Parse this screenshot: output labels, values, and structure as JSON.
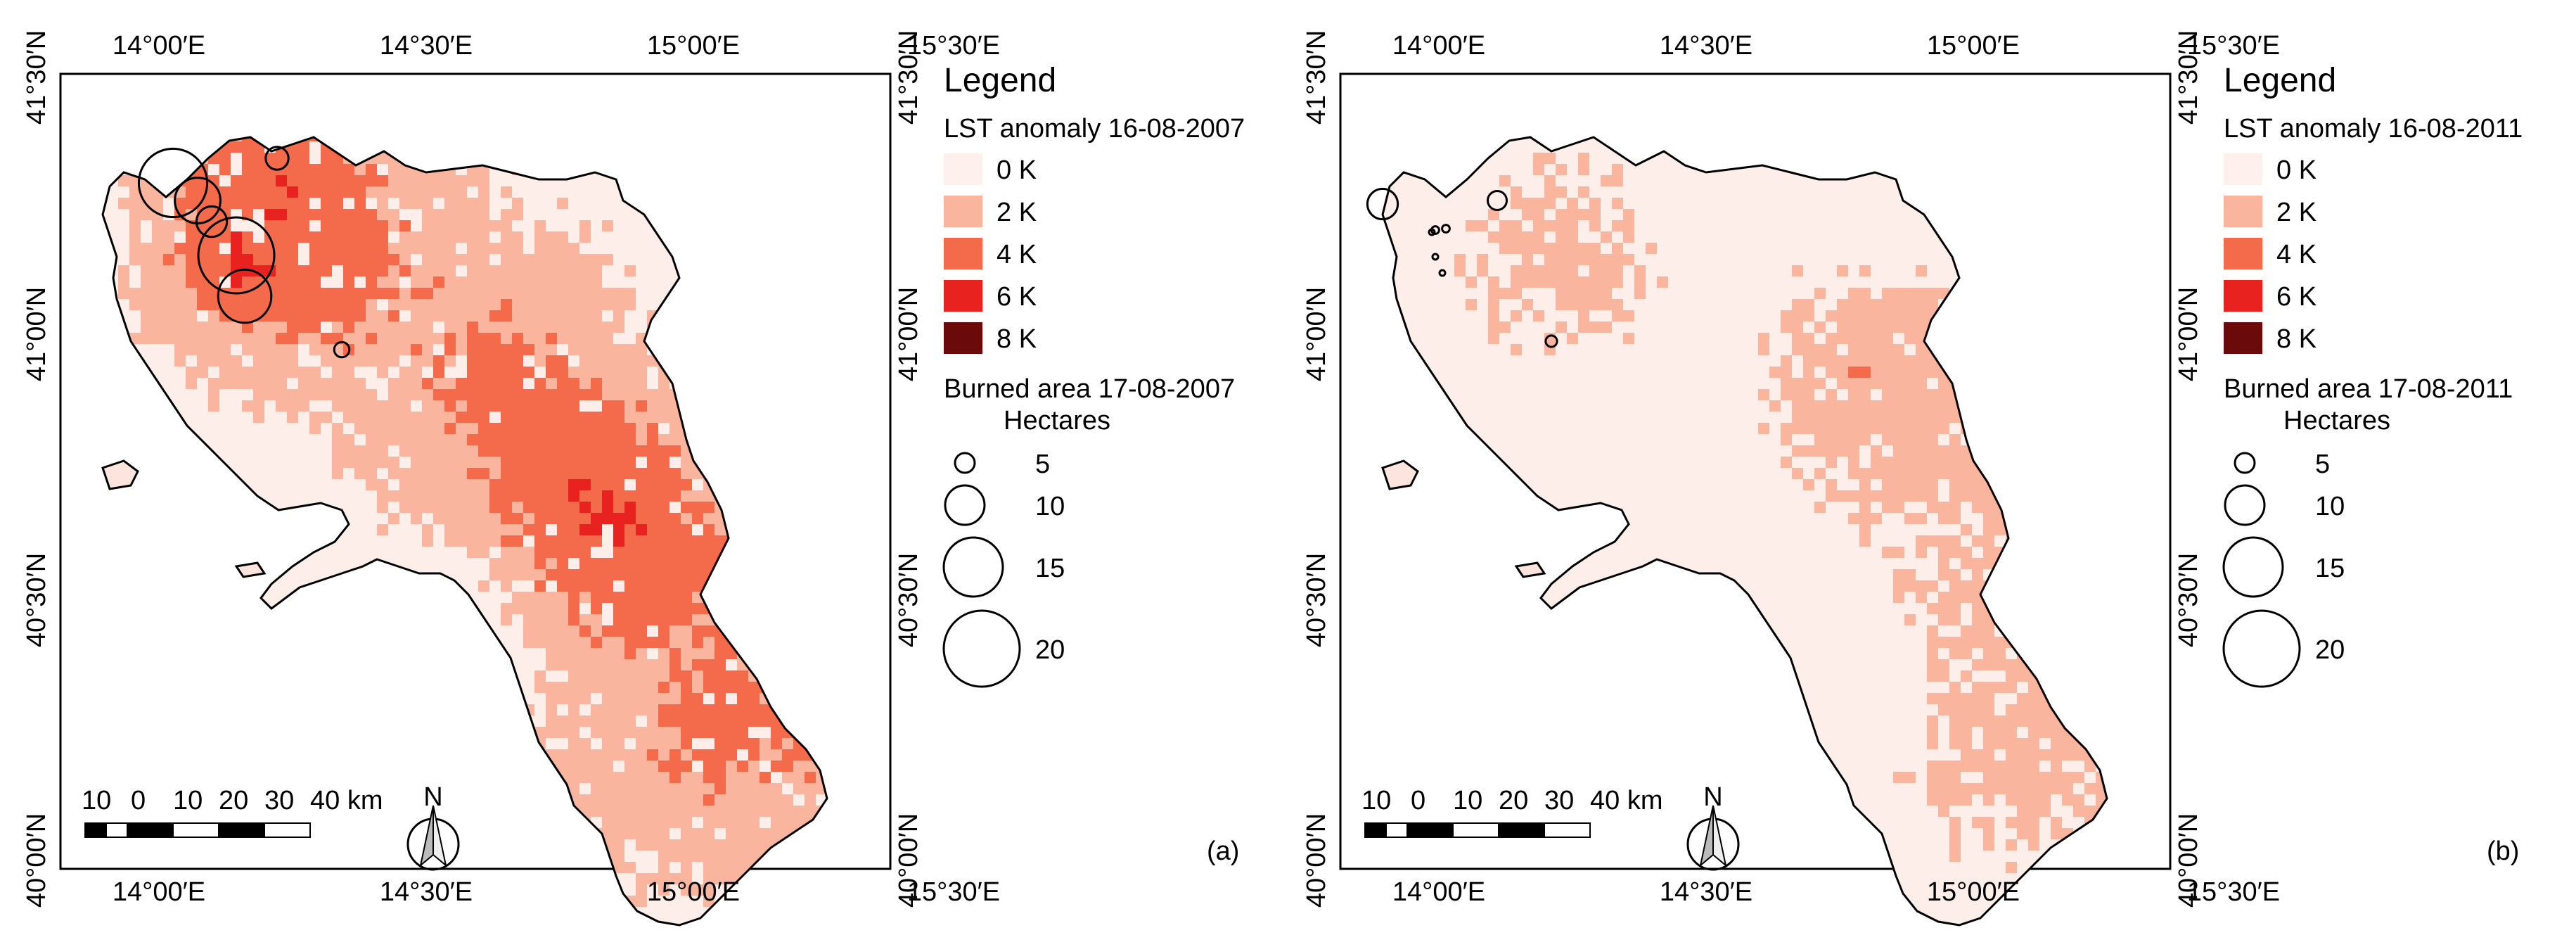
{
  "figure": {
    "panels": [
      {
        "id": "a",
        "label": "(a)",
        "lon_ticks": [
          "14°00′E",
          "14°30′E",
          "15°00′E",
          "15°30′E"
        ],
        "lat_ticks": [
          "41°30′N",
          "41°00′N",
          "40°30′N",
          "40°00′N"
        ],
        "legend": {
          "title": "Legend",
          "lst_title": "LST anomaly 16-08-2007",
          "lst_classes": [
            {
              "label": "0 K",
              "color": "#fdf0ed"
            },
            {
              "label": "2 K",
              "color": "#f9b59e"
            },
            {
              "label": "4 K",
              "color": "#f46b4c"
            },
            {
              "label": "6 K",
              "color": "#e8231f"
            },
            {
              "label": "8 K",
              "color": "#6b0a0a"
            }
          ],
          "burned_title": "Burned area 17-08-2007",
          "hectares_label": "Hectares",
          "sizes": [
            "5",
            "10",
            "15",
            "20"
          ]
        },
        "scale_bar": {
          "labels": [
            "10",
            "0",
            "10",
            "20",
            "30",
            "40 km"
          ]
        },
        "north_label": "N",
        "burned_areas_ha": [
          18,
          12,
          8,
          20,
          6,
          14,
          4
        ]
      },
      {
        "id": "b",
        "label": "(b)",
        "lon_ticks": [
          "14°00′E",
          "14°30′E",
          "15°00′E",
          "15°30′E"
        ],
        "lat_ticks": [
          "41°30′N",
          "41°00′N",
          "40°30′N",
          "40°00′N"
        ],
        "legend": {
          "title": "Legend",
          "lst_title": "LST anomaly 16-08-2011",
          "lst_classes": [
            {
              "label": "0 K",
              "color": "#fdf0ed"
            },
            {
              "label": "2 K",
              "color": "#f9b59e"
            },
            {
              "label": "4 K",
              "color": "#f46b4c"
            },
            {
              "label": "6 K",
              "color": "#e8231f"
            },
            {
              "label": "8 K",
              "color": "#6b0a0a"
            }
          ],
          "burned_title": "Burned area 17-08-2011",
          "hectares_label": "Hectares",
          "sizes": [
            "5",
            "10",
            "15",
            "20"
          ]
        },
        "scale_bar": {
          "labels": [
            "10",
            "0",
            "10",
            "20",
            "30",
            "40 km"
          ]
        },
        "north_label": "N",
        "burned_areas_ha": [
          8,
          5,
          2,
          2,
          3,
          1,
          1,
          1
        ]
      }
    ]
  }
}
